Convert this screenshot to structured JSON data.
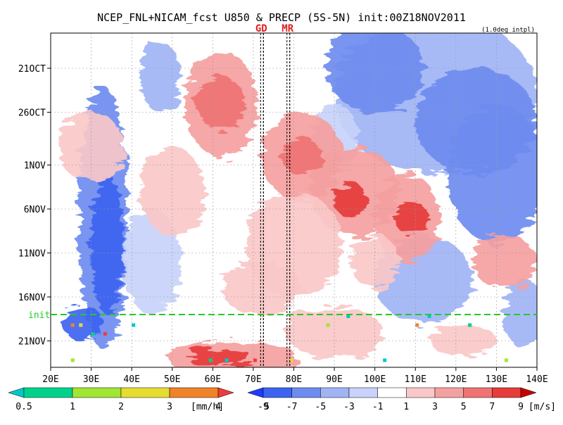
{
  "chart_data": {
    "type": "heatmap",
    "title": "NCEP_FNL+NICAM_fcst U850 & PRECP (5S-5N) init:00Z18NOV2011",
    "subtitle": "(1.0deg intpl)",
    "x_axis": {
      "range": [
        20,
        140
      ],
      "ticks": [
        {
          "value": 20,
          "label": "20E"
        },
        {
          "value": 30,
          "label": "30E"
        },
        {
          "value": 40,
          "label": "40E"
        },
        {
          "value": 50,
          "label": "50E"
        },
        {
          "value": 60,
          "label": "60E"
        },
        {
          "value": 70,
          "label": "70E"
        },
        {
          "value": 80,
          "label": "80E"
        },
        {
          "value": 90,
          "label": "90E"
        },
        {
          "value": 100,
          "label": "100E"
        },
        {
          "value": 110,
          "label": "110E"
        },
        {
          "value": 120,
          "label": "120E"
        },
        {
          "value": 130,
          "label": "130E"
        },
        {
          "value": 140,
          "label": "140E"
        }
      ]
    },
    "y_axis": {
      "range": [
        "2011-10-17",
        "2011-11-24"
      ],
      "ticks": [
        {
          "value": "2011-10-21",
          "label": "21OCT"
        },
        {
          "value": "2011-10-26",
          "label": "26OCT"
        },
        {
          "value": "2011-11-01",
          "label": "1NOV"
        },
        {
          "value": "2011-11-06",
          "label": "6NOV"
        },
        {
          "value": "2011-11-11",
          "label": "11NOV"
        },
        {
          "value": "2011-11-16",
          "label": "16NOV"
        },
        {
          "value": "2011-11-21",
          "label": "21NOV"
        }
      ]
    },
    "grid": true,
    "markers": [
      {
        "label": "GD",
        "x": 72.5
      },
      {
        "label": "MR",
        "x": 79
      }
    ],
    "init_line": {
      "label": "init",
      "date": "2011-11-18"
    },
    "precip_colorbar": {
      "unit": "[mm/h]",
      "labels": [
        "0.5",
        "1",
        "2",
        "3",
        "4",
        "5"
      ],
      "colors": [
        "#00c8c8",
        "#00d28c",
        "#a0e632",
        "#e6dc32",
        "#f08228",
        "#f03c3c"
      ]
    },
    "u850_colorbar": {
      "unit": "[m/s]",
      "labels": [
        "-9",
        "-7",
        "-5",
        "-3",
        "-1",
        "1",
        "3",
        "5",
        "7",
        "9"
      ],
      "colors": [
        "#1e3cff",
        "#3c64f0",
        "#6e8cf0",
        "#a0b4f5",
        "#c8d2fa",
        "#ffffff",
        "#fac8c8",
        "#f5a0a0",
        "#f07373",
        "#e63c3c",
        "#c80000"
      ]
    }
  }
}
